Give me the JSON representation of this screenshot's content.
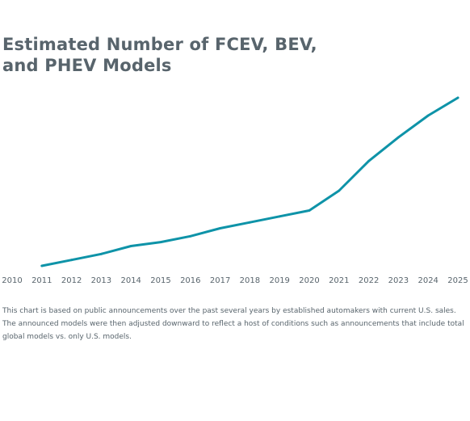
{
  "header": {
    "title_line1": "Estimated Number of FCEV, BEV,",
    "title_line2": "and PHEV Models"
  },
  "note": {
    "text": "This chart is based on public announcements over the past several years by established automakers with current U.S. sales.  The announced models were then adjusted downward to reflect a host of conditions such as announcements that include total global models vs. only U.S. models."
  },
  "chart_data": {
    "type": "line",
    "title": "Estimated Number of FCEV, BEV, and PHEV Models",
    "xlabel": "",
    "ylabel": "",
    "x": [
      "2010",
      "2011",
      "2012",
      "2013",
      "2014",
      "2015",
      "2016",
      "2017",
      "2018",
      "2019",
      "2020",
      "2021",
      "2022",
      "2023",
      "2024",
      "2025"
    ],
    "series": [
      {
        "color": "#0e93a8",
        "x": [
          "2011",
          "2012",
          "2013",
          "2014",
          "2015",
          "2016",
          "2017",
          "2018",
          "2019",
          "2020",
          "2021",
          "2022",
          "2023",
          "2024",
          "2025"
        ],
        "values": [
          0,
          3,
          6,
          10,
          12,
          15,
          19,
          22,
          25,
          28,
          38,
          53,
          65,
          76,
          85
        ]
      }
    ],
    "ylim": [
      0,
      85
    ],
    "grid": false,
    "y_axis_labels": false
  }
}
